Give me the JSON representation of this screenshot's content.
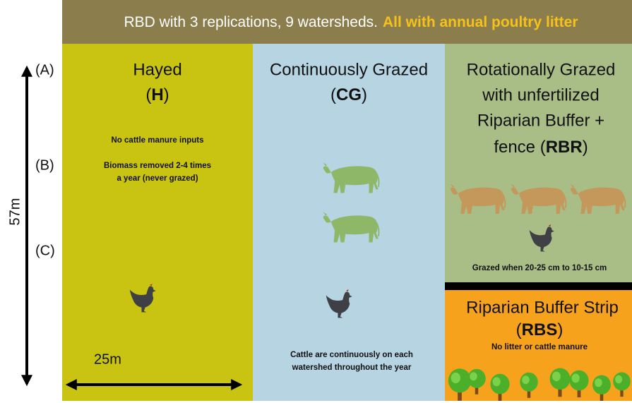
{
  "banner": {
    "text": "RBD with 3 replications, 9 watersheds.",
    "highlight": "All with annual poultry litter"
  },
  "axis": {
    "labels": [
      "(A)",
      "(B)",
      "(C)"
    ],
    "length": "57m",
    "width": "25m"
  },
  "panels": [
    {
      "title_lines": [
        "Hayed"
      ],
      "code_prefix": "(",
      "code": "H",
      "code_suffix": ")",
      "notes": [
        "No cattle manure inputs",
        "Biomass removed 2-4 times",
        "a year (never grazed)"
      ]
    },
    {
      "title_lines": [
        "Continuously Grazed"
      ],
      "code_prefix": "(",
      "code": "CG",
      "code_suffix": ")",
      "notes": [
        "Cattle are continuously on each",
        "watershed throughout the year"
      ]
    },
    {
      "title_lines": [
        "Rotationally Grazed",
        "with unfertilized",
        "Riparian Buffer +"
      ],
      "code_prefix": "fence (",
      "code": "RBR",
      "code_suffix": ")",
      "notes": [
        "Grazed when 20-25 cm to 10-15 cm"
      ]
    },
    {
      "title_lines": [
        "Riparian Buffer Strip"
      ],
      "code_prefix": "(",
      "code": "RBS",
      "code_suffix": ")",
      "notes": [
        "No litter or cattle manure"
      ]
    }
  ]
}
